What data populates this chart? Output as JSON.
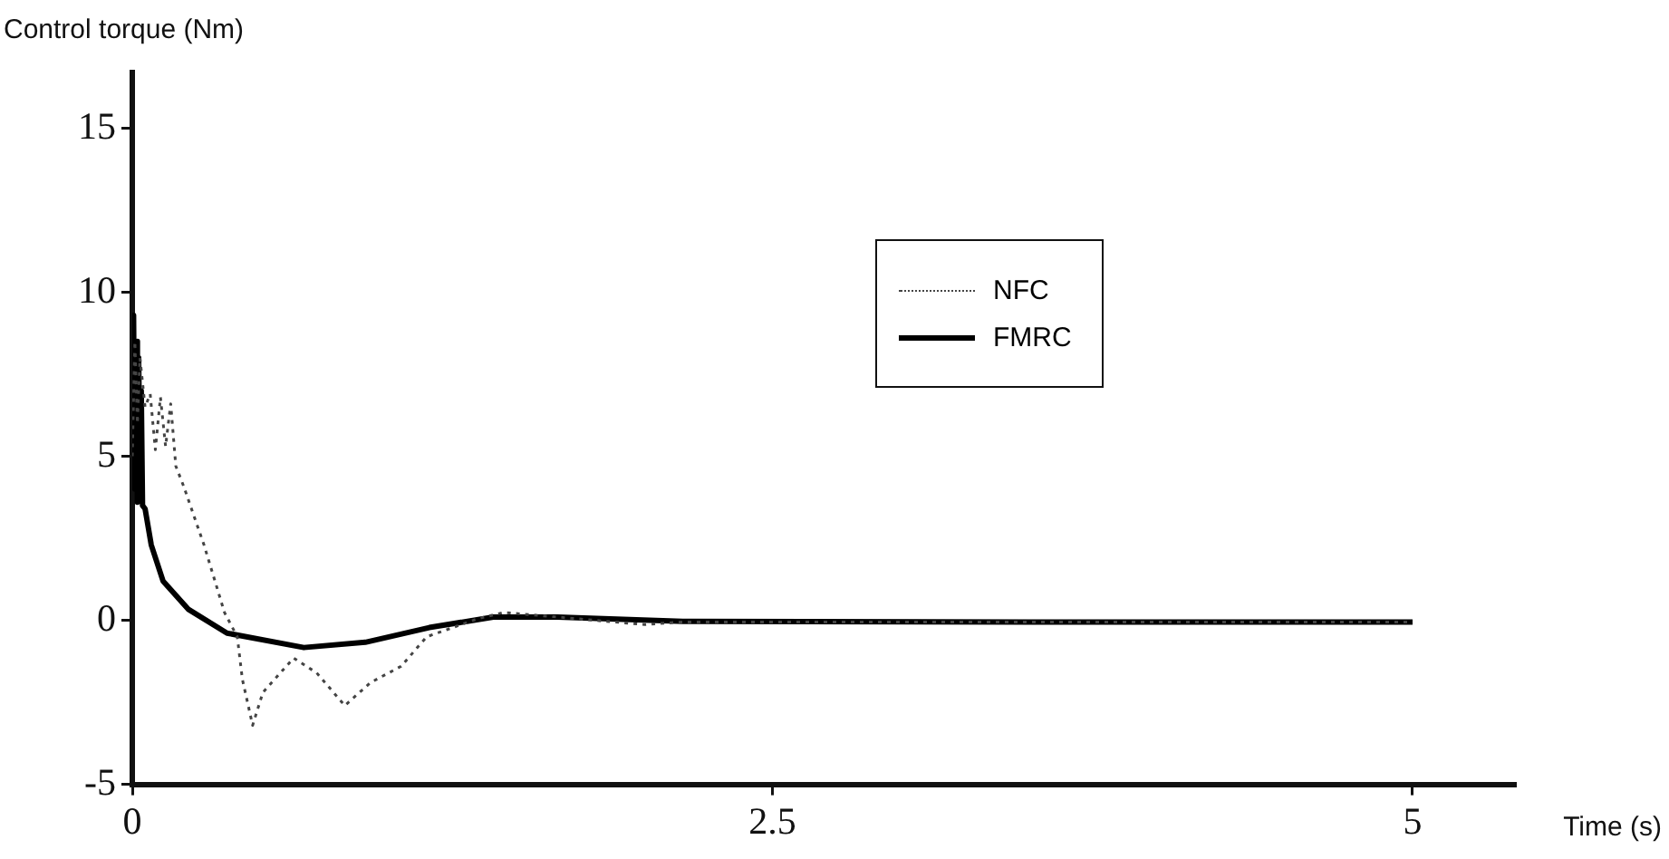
{
  "chart_data": {
    "type": "line",
    "xlabel": "Time (s)",
    "ylabel": "Control torque (Nm)",
    "xlim": [
      0,
      5.4
    ],
    "ylim": [
      -5,
      16.7
    ],
    "xticks": [
      0,
      2.5,
      5
    ],
    "yticks": [
      -5,
      0,
      5,
      10,
      15
    ],
    "grid": false,
    "legend": "right",
    "marker": "none",
    "series": [
      {
        "name": "NFC",
        "color": "#444444",
        "line_style": "dotted",
        "x": [
          0,
          0.01,
          0.02,
          0.03,
          0.05,
          0.07,
          0.09,
          0.11,
          0.13,
          0.15,
          0.17,
          0.2,
          0.28,
          0.36,
          0.41,
          0.43,
          0.47,
          0.51,
          0.63,
          0.72,
          0.83,
          0.93,
          1.05,
          1.15,
          1.35,
          1.45,
          1.66,
          2.0,
          2.15,
          2.5,
          3.5,
          5
        ],
        "values": [
          5,
          8.5,
          6,
          8,
          6.5,
          6.9,
          5.2,
          6.8,
          5.3,
          6.6,
          4.7,
          4.1,
          2.3,
          0.24,
          -0.5,
          -1.8,
          -3.2,
          -2.2,
          -1.15,
          -1.6,
          -2.6,
          -1.9,
          -1.4,
          -0.5,
          0.05,
          0.24,
          0.1,
          -0.13,
          -0.05,
          -0.05,
          -0.05,
          -0.05
        ]
      },
      {
        "name": "FMRC",
        "color": "#000000",
        "line_style": "solid",
        "x": [
          0,
          0.005,
          0.01,
          0.015,
          0.02,
          0.025,
          0.03,
          0.035,
          0.04,
          0.05,
          0.074,
          0.12,
          0.22,
          0.37,
          0.67,
          0.91,
          1.16,
          1.41,
          1.66,
          2.15,
          3.5,
          5
        ],
        "values": [
          5,
          9.3,
          4,
          8.5,
          3.6,
          8,
          4,
          7,
          3.5,
          3.4,
          2.3,
          1.2,
          0.33,
          -0.39,
          -0.83,
          -0.67,
          -0.22,
          0.1,
          0.1,
          -0.03,
          -0.05,
          -0.05
        ]
      }
    ]
  }
}
